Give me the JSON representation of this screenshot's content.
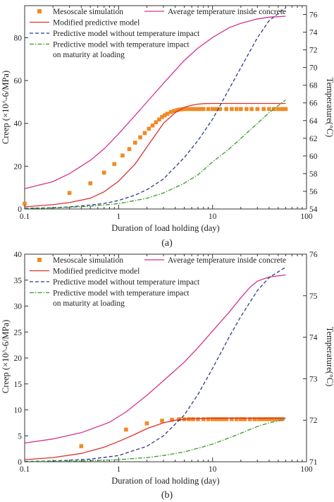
{
  "chart_data": [
    {
      "type": "line",
      "panel_label": "(a)",
      "xlabel": "Duration of load holding (day)",
      "ylabel": "Creep (×10^-6/MPa)",
      "y2label": "Temperature(°C)",
      "xscale": "log",
      "xlim": [
        0.1,
        100
      ],
      "ylim": [
        0,
        95
      ],
      "y2lim": [
        54,
        77
      ],
      "x_ticks": [
        0.1,
        1,
        10,
        100
      ],
      "x_tick_labels": [
        "0.1",
        "1",
        "10",
        "100"
      ],
      "y_ticks": [
        0,
        20,
        40,
        60,
        80
      ],
      "y_tick_labels": [
        "0",
        "20",
        "40",
        "60",
        "80"
      ],
      "y2_ticks": [
        54,
        56,
        58,
        60,
        62,
        64,
        66,
        68,
        70,
        72,
        74,
        76
      ],
      "y2_tick_labels": [
        "54",
        "56",
        "58",
        "60",
        "62",
        "64",
        "66",
        "68",
        "70",
        "72",
        "74",
        "76"
      ],
      "legend": {
        "placement": "top",
        "entries": [
          {
            "label": "Mesoscale simulation",
            "series": "meso"
          },
          {
            "label": "Average temperature inside concrete",
            "series": "temp"
          },
          {
            "label": "Modified predictive model",
            "series": "modified"
          },
          {
            "label": "Predictive model without temperature impact",
            "series": "without"
          },
          {
            "label": "Predictive model with temperature impact",
            "label2": "on maturity at loading",
            "series": "with"
          }
        ]
      },
      "series": [
        {
          "id": "meso",
          "style": "square-markers",
          "color": "#f08a24",
          "axis": "left",
          "x": [
            0.1,
            0.3,
            0.5,
            0.7,
            0.9,
            1.1,
            1.3,
            1.5,
            1.7,
            1.9,
            2.1,
            2.3,
            2.5,
            2.7,
            2.9,
            3.1,
            3.3,
            3.6,
            3.9,
            4.2,
            4.5,
            4.8,
            5.2,
            5.6,
            6,
            6.5,
            7,
            7.5,
            8,
            9,
            10,
            11,
            12,
            14,
            16,
            18,
            20,
            23,
            26,
            30,
            35,
            40,
            45,
            50,
            55,
            60
          ],
          "y": [
            2.5,
            7.5,
            12,
            17,
            21,
            25,
            28,
            31,
            33.5,
            35.5,
            37.5,
            39,
            40.5,
            41.8,
            43,
            43.8,
            44.5,
            45.3,
            45.8,
            46.2,
            46.5,
            46.6,
            46.7,
            46.7,
            46.7,
            46.7,
            46.7,
            46.7,
            46.7,
            46.7,
            46.7,
            46.7,
            46.7,
            46.7,
            46.7,
            46.7,
            46.7,
            46.7,
            46.7,
            46.7,
            46.7,
            46.7,
            46.7,
            46.7,
            46.7,
            46.7
          ]
        },
        {
          "id": "temp",
          "style": "solid",
          "color": "#d4338f",
          "axis": "right",
          "x": [
            0.1,
            0.2,
            0.3,
            0.5,
            0.7,
            1,
            1.5,
            2,
            3,
            5,
            7,
            10,
            15,
            20,
            30,
            40,
            60
          ],
          "y": [
            56.3,
            57.1,
            58.0,
            59.5,
            60.8,
            62.5,
            64.6,
            66.1,
            68.2,
            70.8,
            72.2,
            73.4,
            74.5,
            75.0,
            75.5,
            75.7,
            75.8
          ]
        },
        {
          "id": "modified",
          "style": "solid",
          "color": "#d9332b",
          "axis": "left",
          "x": [
            0.1,
            0.2,
            0.3,
            0.5,
            0.7,
            1,
            1.5,
            2,
            2.5,
            3,
            4,
            5,
            6,
            7,
            8,
            10,
            20,
            60
          ],
          "y": [
            1,
            2,
            3,
            5,
            8,
            13,
            21,
            29,
            35,
            40,
            45,
            47.5,
            48.5,
            49,
            49.2,
            49.3,
            49.3,
            49.3
          ]
        },
        {
          "id": "without",
          "style": "dashed",
          "color": "#2b3a8f",
          "axis": "left",
          "x": [
            0.1,
            0.2,
            0.3,
            0.5,
            0.7,
            1,
            1.5,
            2,
            3,
            5,
            7,
            10,
            15,
            20,
            30,
            40,
            60
          ],
          "y": [
            0.3,
            0.6,
            1,
            1.8,
            2.6,
            4,
            6.5,
            9,
            14,
            24,
            32,
            42,
            56,
            66,
            80,
            88,
            94
          ]
        },
        {
          "id": "with",
          "style": "dash-dot",
          "color": "#3a9a2c",
          "axis": "left",
          "x": [
            0.1,
            0.2,
            0.3,
            0.5,
            1,
            2,
            3,
            5,
            7,
            10,
            15,
            20,
            30,
            40,
            60
          ],
          "y": [
            0.2,
            0.5,
            0.8,
            1.3,
            2.5,
            5,
            7.5,
            12,
            16,
            22,
            28,
            33,
            40,
            45,
            51
          ]
        }
      ]
    },
    {
      "type": "line",
      "panel_label": "(b)",
      "xlabel": "Duration of load holding (day)",
      "ylabel": "Creep (×10^-6/MPa)",
      "y2label": "Temperature(°C)",
      "xscale": "log",
      "xlim": [
        0.1,
        100
      ],
      "ylim": [
        0,
        40
      ],
      "y2lim": [
        71,
        76
      ],
      "x_ticks": [
        0.1,
        1,
        10,
        100
      ],
      "x_tick_labels": [
        "0.1",
        "1",
        "10",
        "100"
      ],
      "y_ticks": [
        0,
        5,
        10,
        15,
        20,
        25,
        30,
        35,
        40
      ],
      "y_tick_labels": [
        "0",
        "5",
        "10",
        "15",
        "20",
        "25",
        "30",
        "35",
        "40"
      ],
      "y2_ticks": [
        71,
        72,
        73,
        74,
        75,
        76
      ],
      "y2_tick_labels": [
        "71",
        "72",
        "73",
        "74",
        "75",
        "76"
      ],
      "legend": {
        "placement": "top",
        "entries": [
          {
            "label": "Mesoscale simulation",
            "series": "meso"
          },
          {
            "label": "Average temperature inside concrete",
            "series": "temp"
          },
          {
            "label": "Modified predicitve model",
            "series": "modified"
          },
          {
            "label": "Predictive model without temperature impact",
            "series": "without"
          },
          {
            "label": "Predictive model with temperature impact",
            "label2": "on maturity at loading",
            "series": "with"
          }
        ]
      },
      "series": [
        {
          "id": "meso",
          "style": "square-markers",
          "color": "#f08a24",
          "axis": "left",
          "x": [
            0.4,
            1.2,
            2,
            2.9,
            3.7,
            4.4,
            5,
            5.6,
            6.2,
            7,
            8,
            9,
            10,
            11,
            12,
            13,
            14,
            16,
            18,
            20,
            22,
            25,
            28,
            31,
            34,
            37,
            40,
            43,
            46,
            49,
            52,
            55
          ],
          "y": [
            3.0,
            6.2,
            7.4,
            7.9,
            8.1,
            8.2,
            8.2,
            8.2,
            8.2,
            8.2,
            8.2,
            8.2,
            8.2,
            8.2,
            8.2,
            8.2,
            8.2,
            8.2,
            8.2,
            8.2,
            8.2,
            8.2,
            8.2,
            8.2,
            8.2,
            8.2,
            8.2,
            8.2,
            8.2,
            8.2,
            8.2,
            8.2
          ]
        },
        {
          "id": "temp",
          "style": "solid",
          "color": "#d4338f",
          "axis": "right",
          "x": [
            0.1,
            0.2,
            0.4,
            0.8,
            1.2,
            2,
            3,
            5,
            7,
            10,
            15,
            20,
            25,
            30,
            40,
            60
          ],
          "y": [
            71.45,
            71.55,
            71.7,
            71.95,
            72.2,
            72.6,
            72.95,
            73.4,
            73.75,
            74.15,
            74.6,
            74.95,
            75.2,
            75.35,
            75.45,
            75.5
          ]
        },
        {
          "id": "modified",
          "style": "solid",
          "color": "#d9332b",
          "axis": "left",
          "x": [
            0.1,
            0.2,
            0.4,
            0.7,
            1,
            1.5,
            2,
            3,
            4,
            5,
            6,
            8,
            10,
            20,
            60
          ],
          "y": [
            0.4,
            0.8,
            1.6,
            2.8,
            3.9,
            5.3,
            6.4,
            7.5,
            8.0,
            8.2,
            8.3,
            8.35,
            8.4,
            8.4,
            8.4
          ]
        },
        {
          "id": "without",
          "style": "dashed",
          "color": "#2b3a8f",
          "axis": "left",
          "x": [
            0.1,
            0.2,
            0.5,
            1,
            2,
            3,
            5,
            7,
            10,
            15,
            20,
            30,
            40,
            60
          ],
          "y": [
            0.05,
            0.15,
            0.5,
            1.2,
            3.0,
            5.0,
            9.0,
            13,
            18,
            24,
            28,
            33,
            35.5,
            37.5
          ]
        },
        {
          "id": "with",
          "style": "dash-dot",
          "color": "#3a9a2c",
          "axis": "left",
          "x": [
            0.1,
            0.3,
            0.5,
            1,
            2,
            3,
            5,
            7,
            10,
            15,
            20,
            30,
            40,
            60
          ],
          "y": [
            0.02,
            0.1,
            0.2,
            0.4,
            0.8,
            1.2,
            1.9,
            2.6,
            3.4,
            4.6,
            5.5,
            6.8,
            7.5,
            8.2
          ]
        }
      ]
    }
  ]
}
